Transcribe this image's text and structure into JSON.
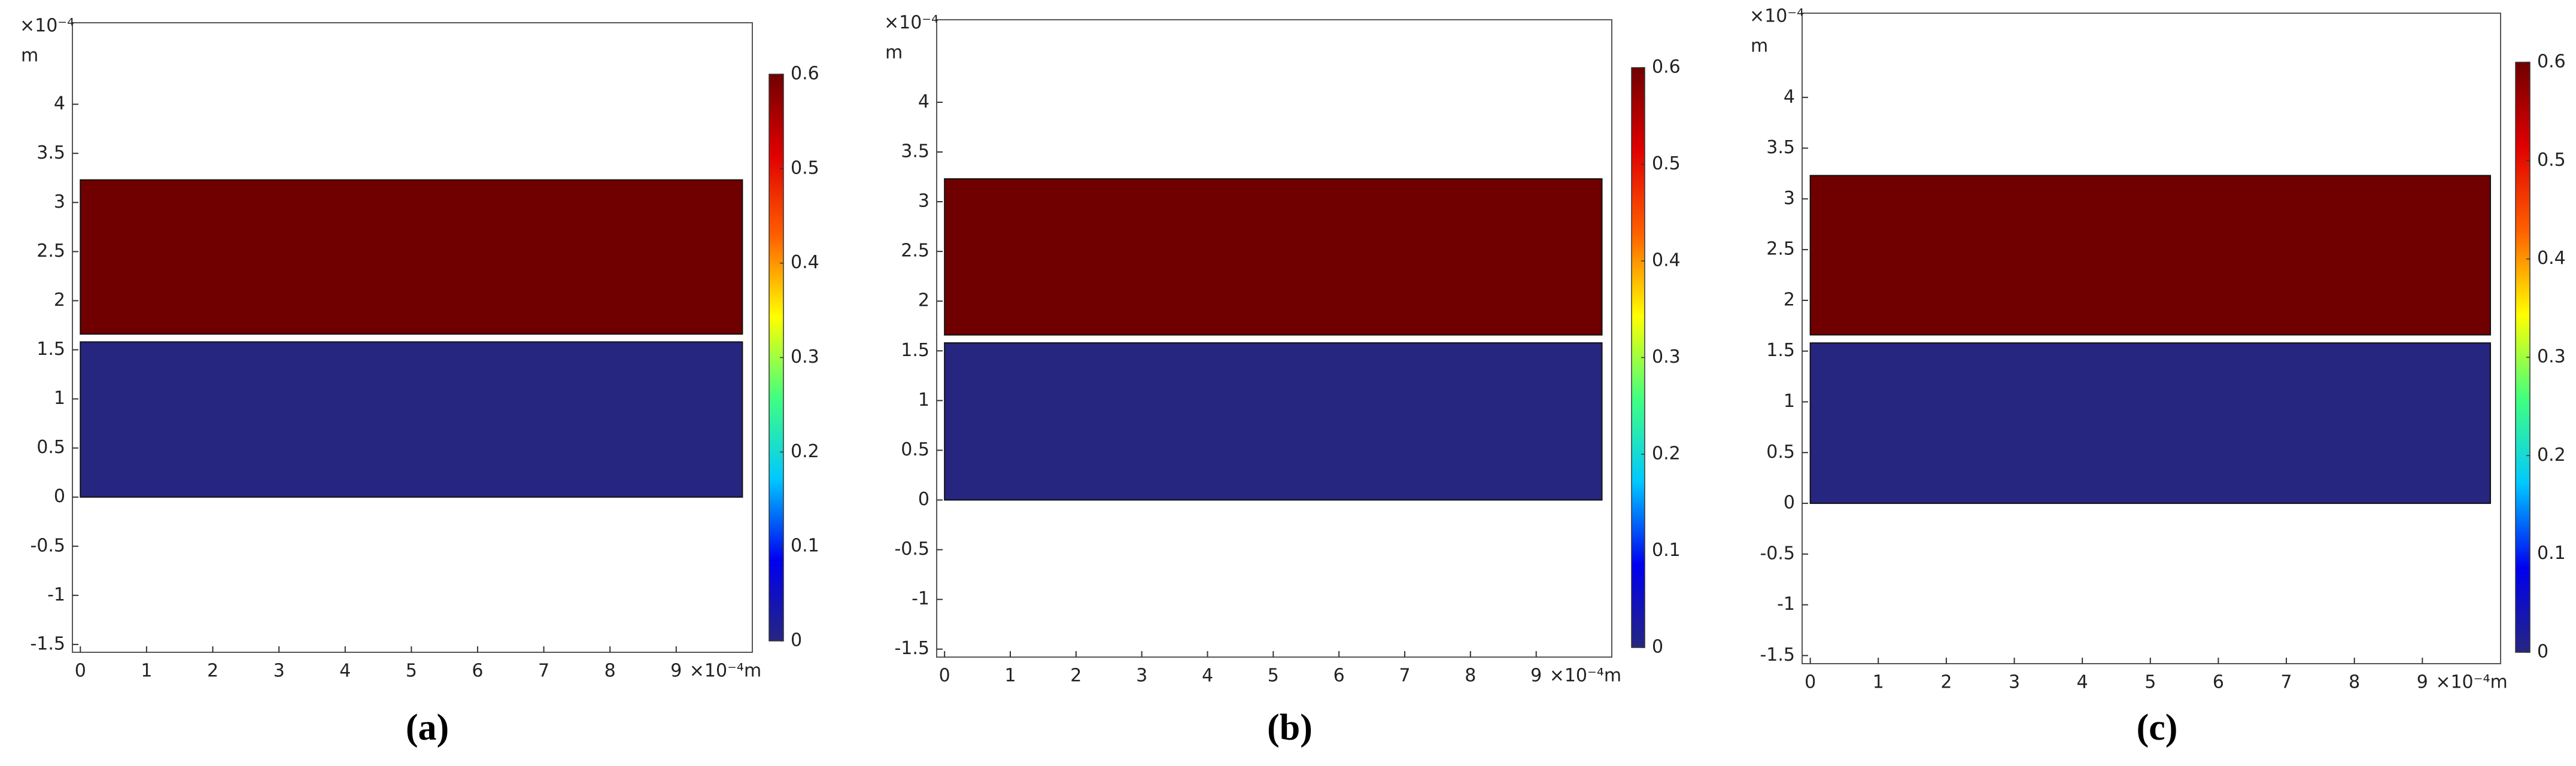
{
  "chart_data": [
    {
      "type": "field",
      "caption": "(a)",
      "x_label": "×10⁻⁴m",
      "y_label": "×10⁻⁴",
      "y_label_unit": "m",
      "xlim": [
        -0.12,
        10.15
      ],
      "ylim": [
        -1.58,
        4.83
      ],
      "xticks": [
        0,
        1,
        2,
        3,
        4,
        5,
        6,
        7,
        8,
        9
      ],
      "yticks": [
        -1.5,
        -1,
        -0.5,
        0,
        0.5,
        1,
        1.5,
        2,
        2.5,
        3,
        3.5,
        4
      ],
      "colormap": [
        "#262680",
        "#0000f0",
        "#00c8ff",
        "#40ff80",
        "#ffff00",
        "#ff6000",
        "#e00000",
        "#700000"
      ],
      "clim": [
        0,
        0.6
      ],
      "cticks": [
        0,
        0.1,
        0.2,
        0.3,
        0.4,
        0.5,
        0.6
      ],
      "regions": [
        {
          "x": [
            0,
            10
          ],
          "y": [
            1.66,
            3.23
          ],
          "value": 0.6
        },
        {
          "x": [
            0,
            10
          ],
          "y": [
            0,
            1.58
          ],
          "value": 0
        }
      ]
    },
    {
      "type": "field",
      "caption": "(b)",
      "x_label": "×10⁻⁴m",
      "y_label": "×10⁻⁴",
      "y_label_unit": "m",
      "xlim": [
        -0.12,
        10.15
      ],
      "ylim": [
        -1.58,
        4.83
      ],
      "xticks": [
        0,
        1,
        2,
        3,
        4,
        5,
        6,
        7,
        8,
        9
      ],
      "yticks": [
        -1.5,
        -1,
        -0.5,
        0,
        0.5,
        1,
        1.5,
        2,
        2.5,
        3,
        3.5,
        4
      ],
      "colormap": [
        "#262680",
        "#0000f0",
        "#00c8ff",
        "#40ff80",
        "#ffff00",
        "#ff6000",
        "#e00000",
        "#700000"
      ],
      "clim": [
        0,
        0.6
      ],
      "cticks": [
        0,
        0.1,
        0.2,
        0.3,
        0.4,
        0.5,
        0.6
      ],
      "regions": [
        {
          "x": [
            0,
            10
          ],
          "y": [
            1.66,
            3.23
          ],
          "value": 0.6
        },
        {
          "x": [
            0,
            10
          ],
          "y": [
            0,
            1.58
          ],
          "value": 0
        }
      ]
    },
    {
      "type": "field",
      "caption": "(c)",
      "x_label": "×10⁻⁴m",
      "y_label": "×10⁻⁴",
      "y_label_unit": "m",
      "xlim": [
        -0.12,
        10.15
      ],
      "ylim": [
        -1.58,
        4.83
      ],
      "xticks": [
        0,
        1,
        2,
        3,
        4,
        5,
        6,
        7,
        8,
        9
      ],
      "yticks": [
        -1.5,
        -1,
        -0.5,
        0,
        0.5,
        1,
        1.5,
        2,
        2.5,
        3,
        3.5,
        4
      ],
      "colormap": [
        "#262680",
        "#0000f0",
        "#00c8ff",
        "#40ff80",
        "#ffff00",
        "#ff6000",
        "#e00000",
        "#700000"
      ],
      "clim": [
        0,
        0.6
      ],
      "cticks": [
        0,
        0.1,
        0.2,
        0.3,
        0.4,
        0.5,
        0.6
      ],
      "regions": [
        {
          "x": [
            0,
            10
          ],
          "y": [
            1.66,
            3.23
          ],
          "value": 0.6
        },
        {
          "x": [
            0,
            10
          ],
          "y": [
            0,
            1.58
          ],
          "value": 0
        }
      ]
    }
  ]
}
